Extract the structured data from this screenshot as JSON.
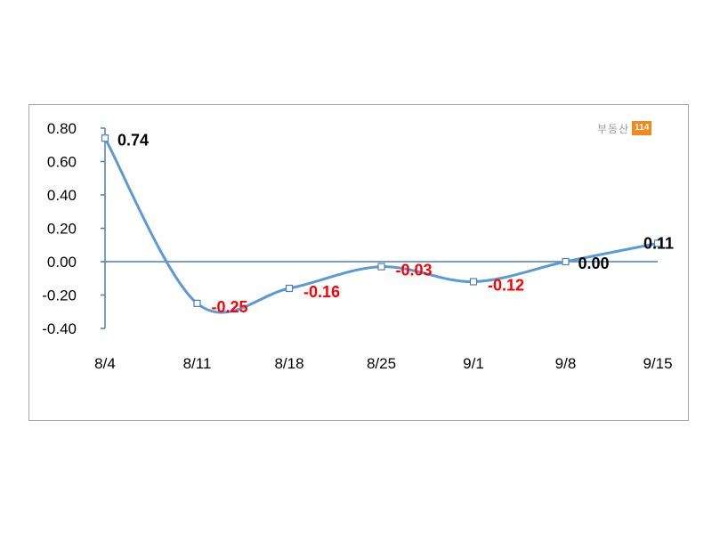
{
  "chart_data": {
    "type": "line",
    "title": "",
    "xlabel": "",
    "ylabel": "",
    "categories": [
      "8/4",
      "8/11",
      "8/18",
      "8/25",
      "9/1",
      "9/8",
      "9/15"
    ],
    "series": [
      {
        "values": [
          0.74,
          -0.25,
          -0.16,
          -0.03,
          -0.12,
          0.0,
          0.11
        ],
        "data_labels": [
          "0.74",
          "-0.25",
          "-0.16",
          "-0.03",
          "-0.12",
          "0.00",
          "0.11"
        ],
        "color": "#5b9bd5"
      }
    ],
    "y_ticks": [
      "0.80",
      "0.60",
      "0.40",
      "0.20",
      "0.00",
      "-0.20",
      "-0.40"
    ],
    "ylim": [
      -0.4,
      0.8
    ],
    "grid": false,
    "legend": "none",
    "negative_label_color": "#ff0000",
    "positive_label_color": "#000000",
    "line_style": "smooth"
  },
  "watermark": {
    "text": "부동산",
    "badge": "114",
    "badge_color": "#f08a1c"
  }
}
